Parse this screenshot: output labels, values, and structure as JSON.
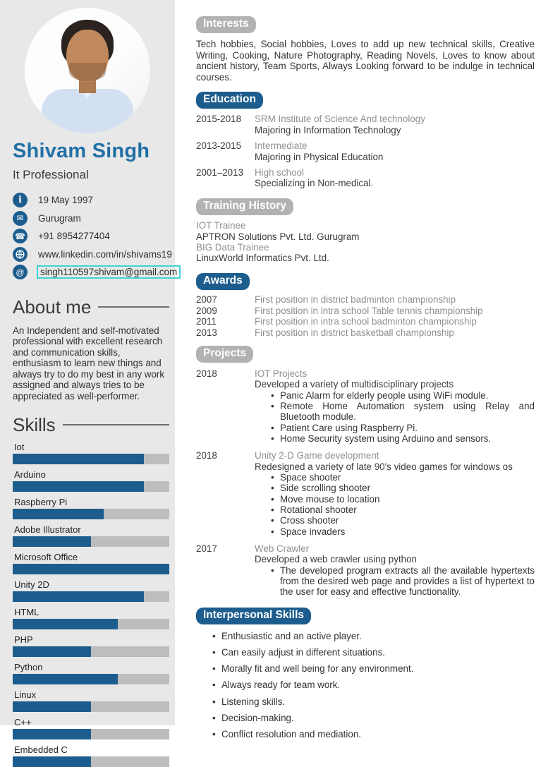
{
  "colors": {
    "accent_blue": "#1d5d8e",
    "name_blue": "#2170a6",
    "badge_gray": "#b2b2b2",
    "sidebar_bg": "#e8e8e8",
    "bar_track": "#bdbdbd",
    "muted_text": "#909090",
    "email_box_border": "#3fd4d8"
  },
  "sidebar": {
    "name": "Shivam Singh",
    "title": "It Professional",
    "contact": [
      {
        "icon": "info-icon",
        "text": "19 May 1997",
        "interactable": false,
        "boxed": false
      },
      {
        "icon": "mail-icon",
        "text": "Gurugram",
        "interactable": false,
        "boxed": false
      },
      {
        "icon": "phone-icon",
        "text": "+91 8954277404",
        "interactable": false,
        "boxed": false
      },
      {
        "icon": "globe-icon",
        "text": "www.linkedin.com/in/shivams19",
        "interactable": true,
        "boxed": false
      },
      {
        "icon": "at-icon",
        "text": "singh110597shivam@gmail.com",
        "interactable": true,
        "boxed": true
      }
    ],
    "about": {
      "heading": "About me",
      "text": "An Independent and self-motivated professional with excellent research and communication skills, enthusiasm to learn new things and always try to do my best in any work assigned and always tries to be appreciated as well-performer."
    },
    "skills": {
      "heading": "Skills",
      "items": [
        {
          "label": "Iot",
          "percent": 84
        },
        {
          "label": "Arduino",
          "percent": 84
        },
        {
          "label": "Raspberry Pi",
          "percent": 58
        },
        {
          "label": "Adobe Illustrator",
          "percent": 50
        },
        {
          "label": "Microsoft Office",
          "percent": 100
        },
        {
          "label": "Unity 2D",
          "percent": 84
        },
        {
          "label": "HTML",
          "percent": 67
        },
        {
          "label": "PHP",
          "percent": 50
        },
        {
          "label": "Python",
          "percent": 67
        },
        {
          "label": "Linux",
          "percent": 50
        },
        {
          "label": "C++",
          "percent": 50
        },
        {
          "label": "Embedded C",
          "percent": 50
        }
      ]
    }
  },
  "main": {
    "interests": {
      "badge": "Interests",
      "style": "gray",
      "text": "Tech hobbies, Social hobbies, Loves to add up new technical skills, Creative Writing, Cooking, Nature Photography, Reading Novels, Loves to know about ancient history, Team Sports, Always Looking forward to be indulge in technical courses."
    },
    "education": {
      "badge": "Education",
      "style": "blue",
      "entries": [
        {
          "years": "2015-2018",
          "subtitle": "SRM Institute of Science And technology",
          "detail": "Majoring in Information Technology"
        },
        {
          "years": "2013-2015",
          "subtitle": "Intermediate",
          "detail": "Majoring in Physical Education"
        },
        {
          "years": "2001–2013",
          "subtitle": "High school",
          "detail": "Specializing in Non-medical."
        }
      ]
    },
    "training": {
      "badge": "Training History",
      "style": "gray",
      "lines": [
        {
          "text": "IOT Trainee",
          "muted": true
        },
        {
          "text": "APTRON Solutions Pvt. Ltd. Gurugram",
          "muted": false
        },
        {
          "text": "BIG Data Trainee",
          "muted": true
        },
        {
          "text": "LinuxWorld Informatics Pvt. Ltd.",
          "muted": false
        }
      ]
    },
    "awards": {
      "badge": "Awards",
      "style": "blue",
      "entries": [
        {
          "year": "2007",
          "text": "First position in district badminton championship"
        },
        {
          "year": "2009",
          "text": "First position in intra school Table tennis championship"
        },
        {
          "year": "2011",
          "text": "First position in intra school badminton championship"
        },
        {
          "year": "2013",
          "text": "First position in district basketball championship"
        }
      ]
    },
    "projects": {
      "badge": "Projects",
      "style": "gray",
      "entries": [
        {
          "year": "2018",
          "title": "IOT Projects",
          "description": "Developed a variety of multidisciplinary projects",
          "bullets": [
            "Panic Alarm for elderly people using WiFi module.",
            "Remote Home Automation system using Relay and Bluetooth module.",
            "Patient Care using Raspberry Pi.",
            "Home Security system using Arduino and sensors."
          ]
        },
        {
          "year": "2018",
          "title": "Unity 2-D Game development",
          "description": "Redesigned a variety of late 90's video games for windows os",
          "bullets": [
            "Space shooter",
            "Side scrolling shooter",
            "Move mouse to location",
            "Rotational shooter",
            "Cross shooter",
            "Space invaders"
          ]
        },
        {
          "year": "2017",
          "title": "Web Crawler",
          "description": "Developed a web crawler using python",
          "bullets": [
            "The developed program extracts all the available hypertexts from the desired web page and provides a list of hypertext to the user for easy and effective functionality."
          ]
        }
      ]
    },
    "interpersonal": {
      "badge": "Interpersonal Skills",
      "style": "blue",
      "bullets": [
        "Enthusiastic and an active player.",
        "Can easily adjust in different situations.",
        "Morally fit and well being for any environment.",
        "Always ready for team work.",
        "Listening skills.",
        "Decision-making.",
        "Conflict resolution and mediation."
      ]
    }
  }
}
